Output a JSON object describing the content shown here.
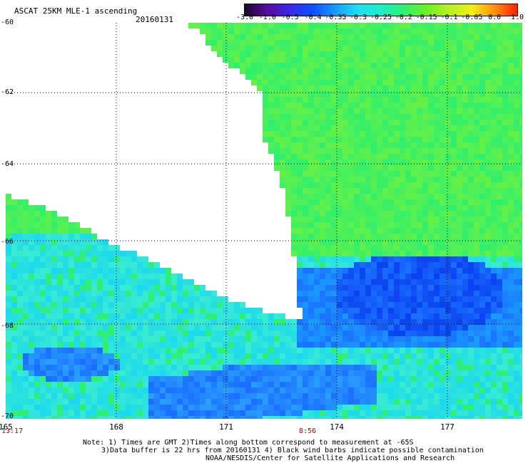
{
  "header": {
    "title": "ASCAT 25KM MLE-1 ascending",
    "date": "20160131"
  },
  "colorbar": {
    "ticks": [
      "-3.0",
      "-1.0",
      "-0.5",
      "-0.4",
      "-0.35",
      "-0.3",
      "-0.25",
      "-0.2",
      "-0.15",
      "-0.1",
      "-0.05",
      "0.0",
      "1.0"
    ],
    "colors": [
      "#1a0a2e",
      "#5a0aa0",
      "#3a28e8",
      "#0a50ff",
      "#1a9cff",
      "#1ee0f0",
      "#18f0c8",
      "#2ef070",
      "#6ef020",
      "#b8f020",
      "#f0f010",
      "#ff9010",
      "#ff2000"
    ]
  },
  "axes": {
    "lat_labels": [
      "-60",
      "-62",
      "-64",
      "-66",
      "-68",
      "-70"
    ],
    "lon_labels": [
      "165",
      "168",
      "171",
      "174",
      "177"
    ]
  },
  "times": {
    "left": "13:17",
    "middle": "8:56"
  },
  "notes": {
    "line1": "Note: 1) Times are GMT 2)Times along bottom correspond to measurement at -65S",
    "line2": "3)Data buffer is 22 hrs from 20160131 4) Black wind barbs indicate possible contamination",
    "line3": "NOAA/NESDIS/Center for Satellite Applications and Research"
  }
}
